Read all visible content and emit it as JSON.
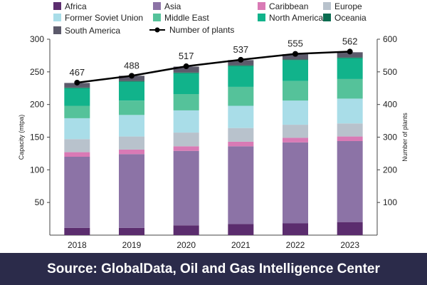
{
  "source_text": "Source:  GlobalData, Oil and Gas Intelligence Center",
  "chart_data": {
    "type": "bar",
    "stacked": true,
    "categories": [
      "2018",
      "2019",
      "2020",
      "2021",
      "2022",
      "2023"
    ],
    "ylabel": "Capacity (mtpa)",
    "ylim": [
      0,
      300
    ],
    "yticks": [
      50,
      100,
      150,
      200,
      250,
      300
    ],
    "y2label": "Number of plants",
    "y2lim": [
      0,
      600
    ],
    "y2ticks": [
      100,
      200,
      300,
      400,
      500,
      600
    ],
    "grid": false,
    "legend_position": "top",
    "series": [
      {
        "name": "Africa",
        "color": "#5b2d6e",
        "values": [
          11,
          11,
          15,
          17,
          18,
          20
        ]
      },
      {
        "name": "Asia",
        "color": "#8c73a6",
        "values": [
          109,
          113,
          114,
          119,
          124,
          124
        ]
      },
      {
        "name": "Caribbean",
        "color": "#d97ab5",
        "values": [
          7,
          7,
          7,
          7,
          7,
          7
        ]
      },
      {
        "name": "Europe",
        "color": "#b8c2cc",
        "values": [
          20,
          20,
          21,
          21,
          20,
          20
        ]
      },
      {
        "name": "Former Soviet Union",
        "color": "#a9dde8",
        "values": [
          32,
          33,
          34,
          34,
          37,
          38
        ]
      },
      {
        "name": "Middle East",
        "color": "#55c29a",
        "values": [
          19,
          22,
          25,
          29,
          30,
          30
        ]
      },
      {
        "name": "North America",
        "color": "#11b38b",
        "values": [
          27,
          29,
          32,
          32,
          32,
          32
        ]
      },
      {
        "name": "Oceania",
        "color": "#0b6c50",
        "values": [
          1,
          1,
          1,
          1,
          1,
          1
        ]
      },
      {
        "name": "South America",
        "color": "#5c5a6b",
        "values": [
          7,
          8,
          9,
          8,
          8,
          8
        ]
      }
    ],
    "line_series": {
      "name": "Number of plants",
      "axis": "right",
      "color": "#000000",
      "values": [
        467,
        488,
        517,
        537,
        555,
        562
      ]
    }
  }
}
